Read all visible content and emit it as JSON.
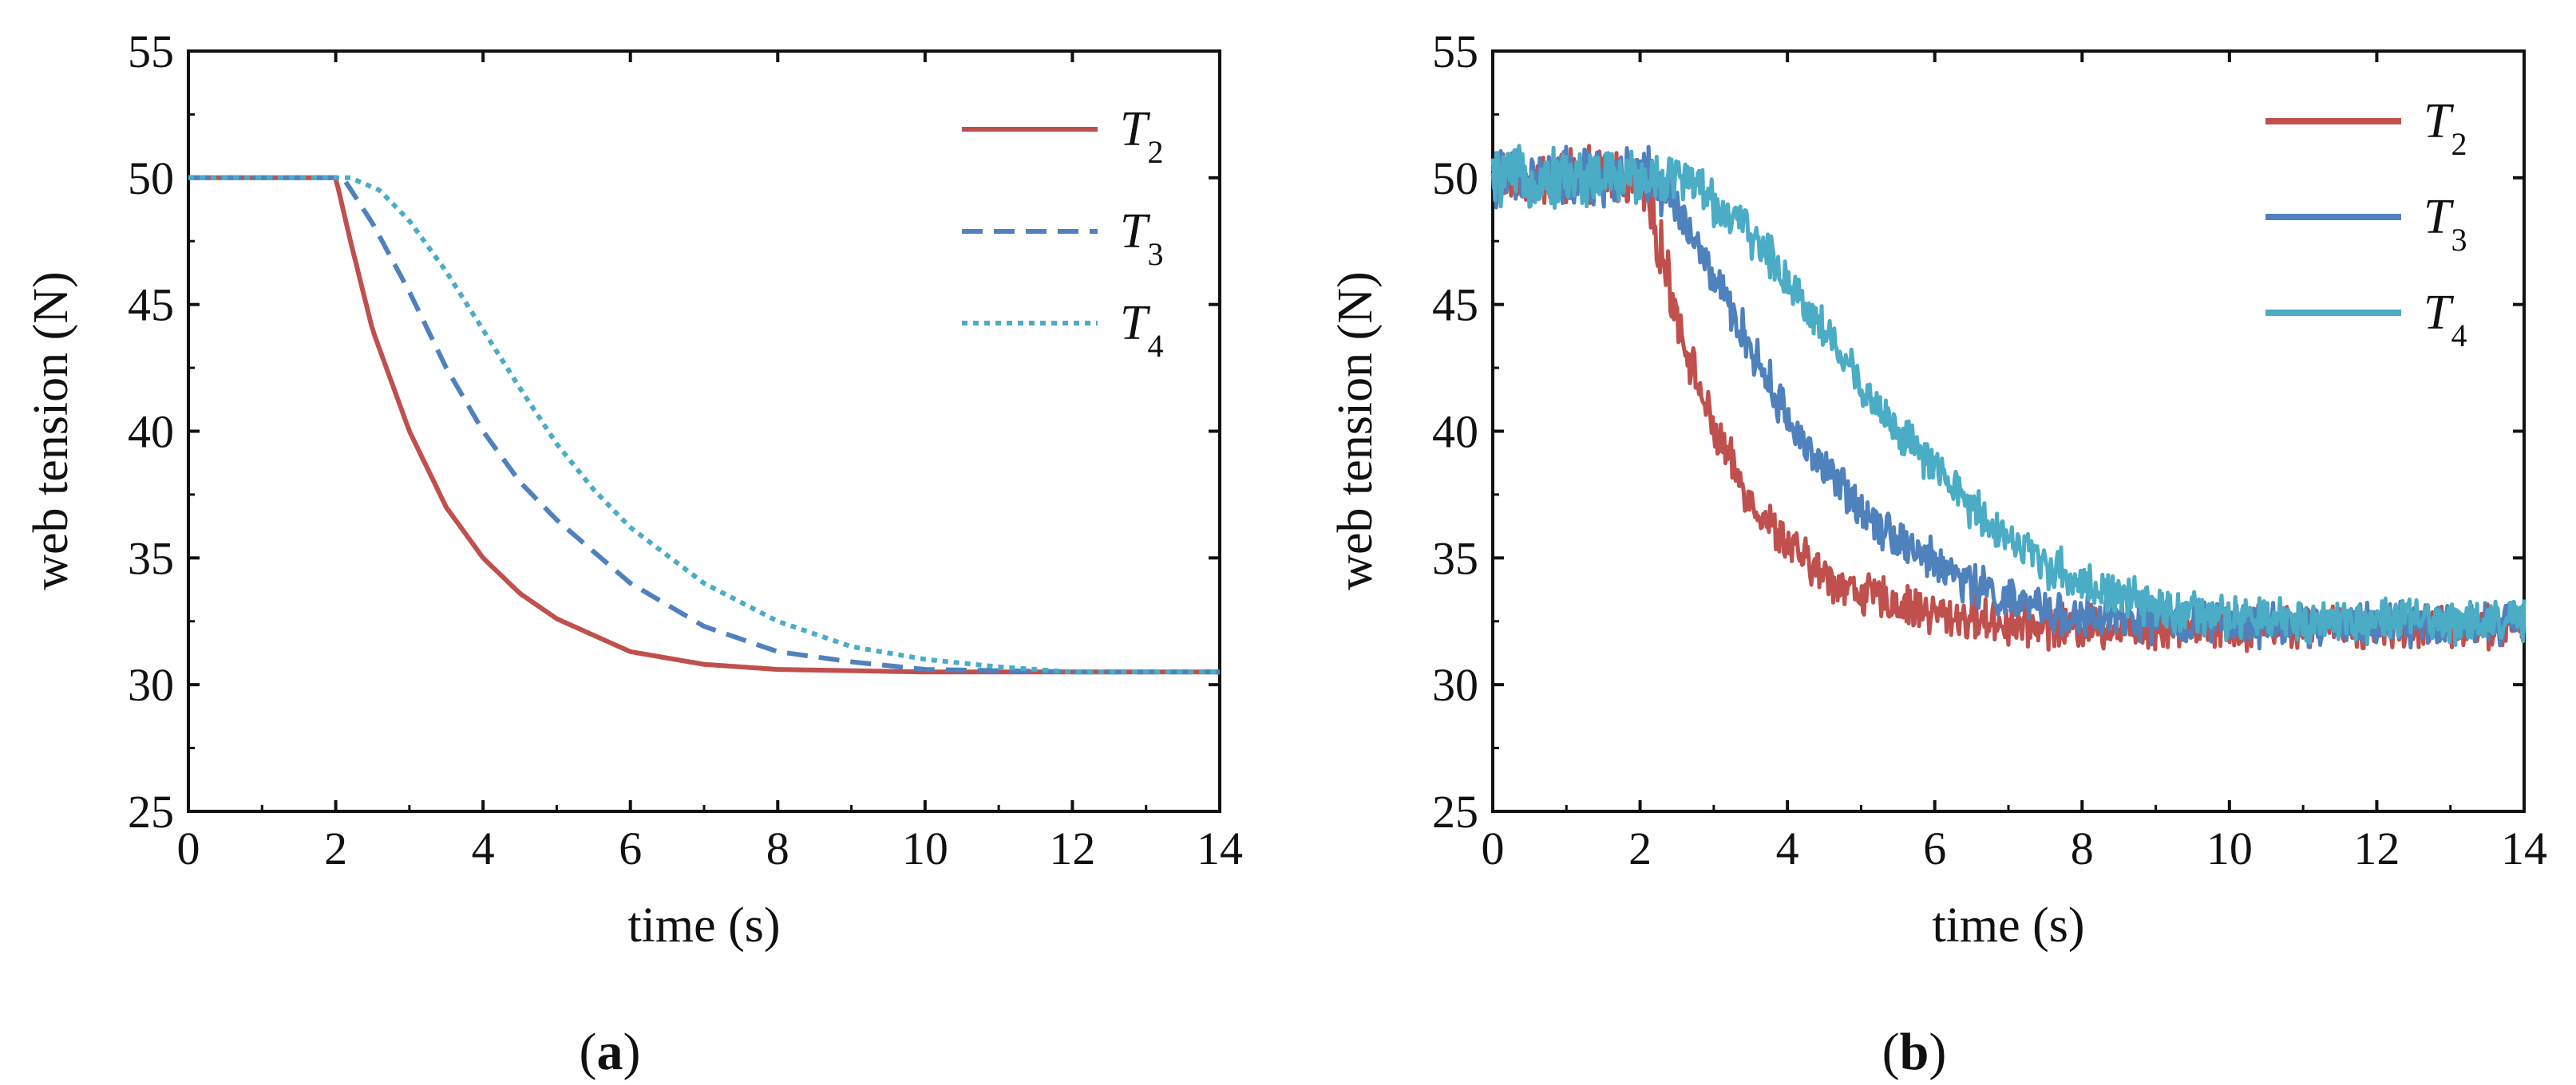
{
  "chart_data": [
    {
      "panel": "a",
      "caption_open": "(",
      "caption_letter": "a",
      "caption_close": ")",
      "type": "line",
      "xlabel": "time (s)",
      "ylabel": "web tension (N)",
      "xlim": [
        0,
        14
      ],
      "ylim": [
        25,
        55
      ],
      "xticks": [
        0,
        2,
        4,
        6,
        8,
        10,
        12,
        14
      ],
      "yticks": [
        25,
        30,
        35,
        40,
        45,
        50,
        55
      ],
      "legend_position": "top-right",
      "series": [
        {
          "name": "T",
          "subscript": "2",
          "color": "#c0504d",
          "style": "solid",
          "x": [
            0,
            2.0,
            2.2,
            2.5,
            3.0,
            3.5,
            4.0,
            4.5,
            5.0,
            6.0,
            7.0,
            8.0,
            10.0,
            12.0,
            14.0
          ],
          "y": [
            50,
            50,
            47.5,
            44.0,
            40.0,
            37.0,
            35.0,
            33.6,
            32.6,
            31.3,
            30.8,
            30.6,
            30.5,
            30.5,
            30.5
          ]
        },
        {
          "name": "T",
          "subscript": "3",
          "color": "#4f81bd",
          "style": "dashed",
          "x": [
            0,
            2.1,
            2.5,
            3.0,
            3.5,
            4.0,
            4.5,
            5.0,
            6.0,
            7.0,
            8.0,
            9.0,
            10.0,
            12.0,
            14.0
          ],
          "y": [
            50,
            50,
            48.2,
            45.5,
            42.5,
            40.0,
            38.0,
            36.5,
            34.0,
            32.3,
            31.3,
            30.9,
            30.6,
            30.5,
            30.5
          ]
        },
        {
          "name": "T",
          "subscript": "4",
          "color": "#4bacc6",
          "style": "dotted",
          "x": [
            0,
            2.2,
            2.6,
            3.0,
            3.5,
            4.0,
            4.5,
            5.0,
            5.5,
            6.0,
            7.0,
            8.0,
            9.0,
            10.0,
            11.0,
            12.0,
            14.0
          ],
          "y": [
            50,
            50,
            49.5,
            48.3,
            46.3,
            44.0,
            41.7,
            39.5,
            37.7,
            36.2,
            34.0,
            32.5,
            31.5,
            31.0,
            30.7,
            30.5,
            30.5
          ]
        }
      ]
    },
    {
      "panel": "b",
      "caption_open": "(",
      "caption_letter": "b",
      "caption_close": ")",
      "type": "line",
      "xlabel": "time (s)",
      "ylabel": "web tension (N)",
      "xlim": [
        0,
        14
      ],
      "ylim": [
        25,
        55
      ],
      "xticks": [
        0,
        2,
        4,
        6,
        8,
        10,
        12,
        14
      ],
      "yticks": [
        25,
        30,
        35,
        40,
        45,
        50,
        55
      ],
      "legend_position": "top-right",
      "noisy": true,
      "series": [
        {
          "name": "T",
          "subscript": "2",
          "color": "#c0504d",
          "style": "solid",
          "x": [
            0,
            2.0,
            2.3,
            2.6,
            3.0,
            3.5,
            4.0,
            4.5,
            5.0,
            6.0,
            7.0,
            8.0,
            10.0,
            12.0,
            14.0
          ],
          "y": [
            50,
            50,
            47.0,
            43.5,
            40.0,
            37.3,
            35.5,
            34.3,
            33.6,
            32.8,
            32.4,
            32.3,
            32.3,
            32.3,
            32.3
          ]
        },
        {
          "name": "T",
          "subscript": "3",
          "color": "#4f81bd",
          "style": "solid",
          "x": [
            0,
            2.2,
            2.5,
            3.0,
            3.5,
            4.0,
            4.5,
            5.0,
            5.5,
            6.0,
            6.5,
            7.0,
            8.0,
            10.0,
            14.0
          ],
          "y": [
            50,
            50,
            48.8,
            46.0,
            43.3,
            40.5,
            38.5,
            37.0,
            35.8,
            34.8,
            34.0,
            33.3,
            32.6,
            32.4,
            32.4
          ]
        },
        {
          "name": "T",
          "subscript": "4",
          "color": "#4bacc6",
          "style": "solid",
          "x": [
            0,
            2.7,
            3.0,
            3.5,
            4.0,
            4.5,
            5.0,
            5.5,
            6.0,
            6.5,
            7.0,
            7.5,
            8.0,
            9.0,
            10.0,
            14.0
          ],
          "y": [
            50,
            50,
            49.0,
            47.8,
            46.0,
            44.0,
            41.8,
            40.0,
            38.5,
            37.0,
            35.8,
            34.8,
            34.0,
            33.0,
            32.6,
            32.5
          ]
        }
      ]
    }
  ]
}
